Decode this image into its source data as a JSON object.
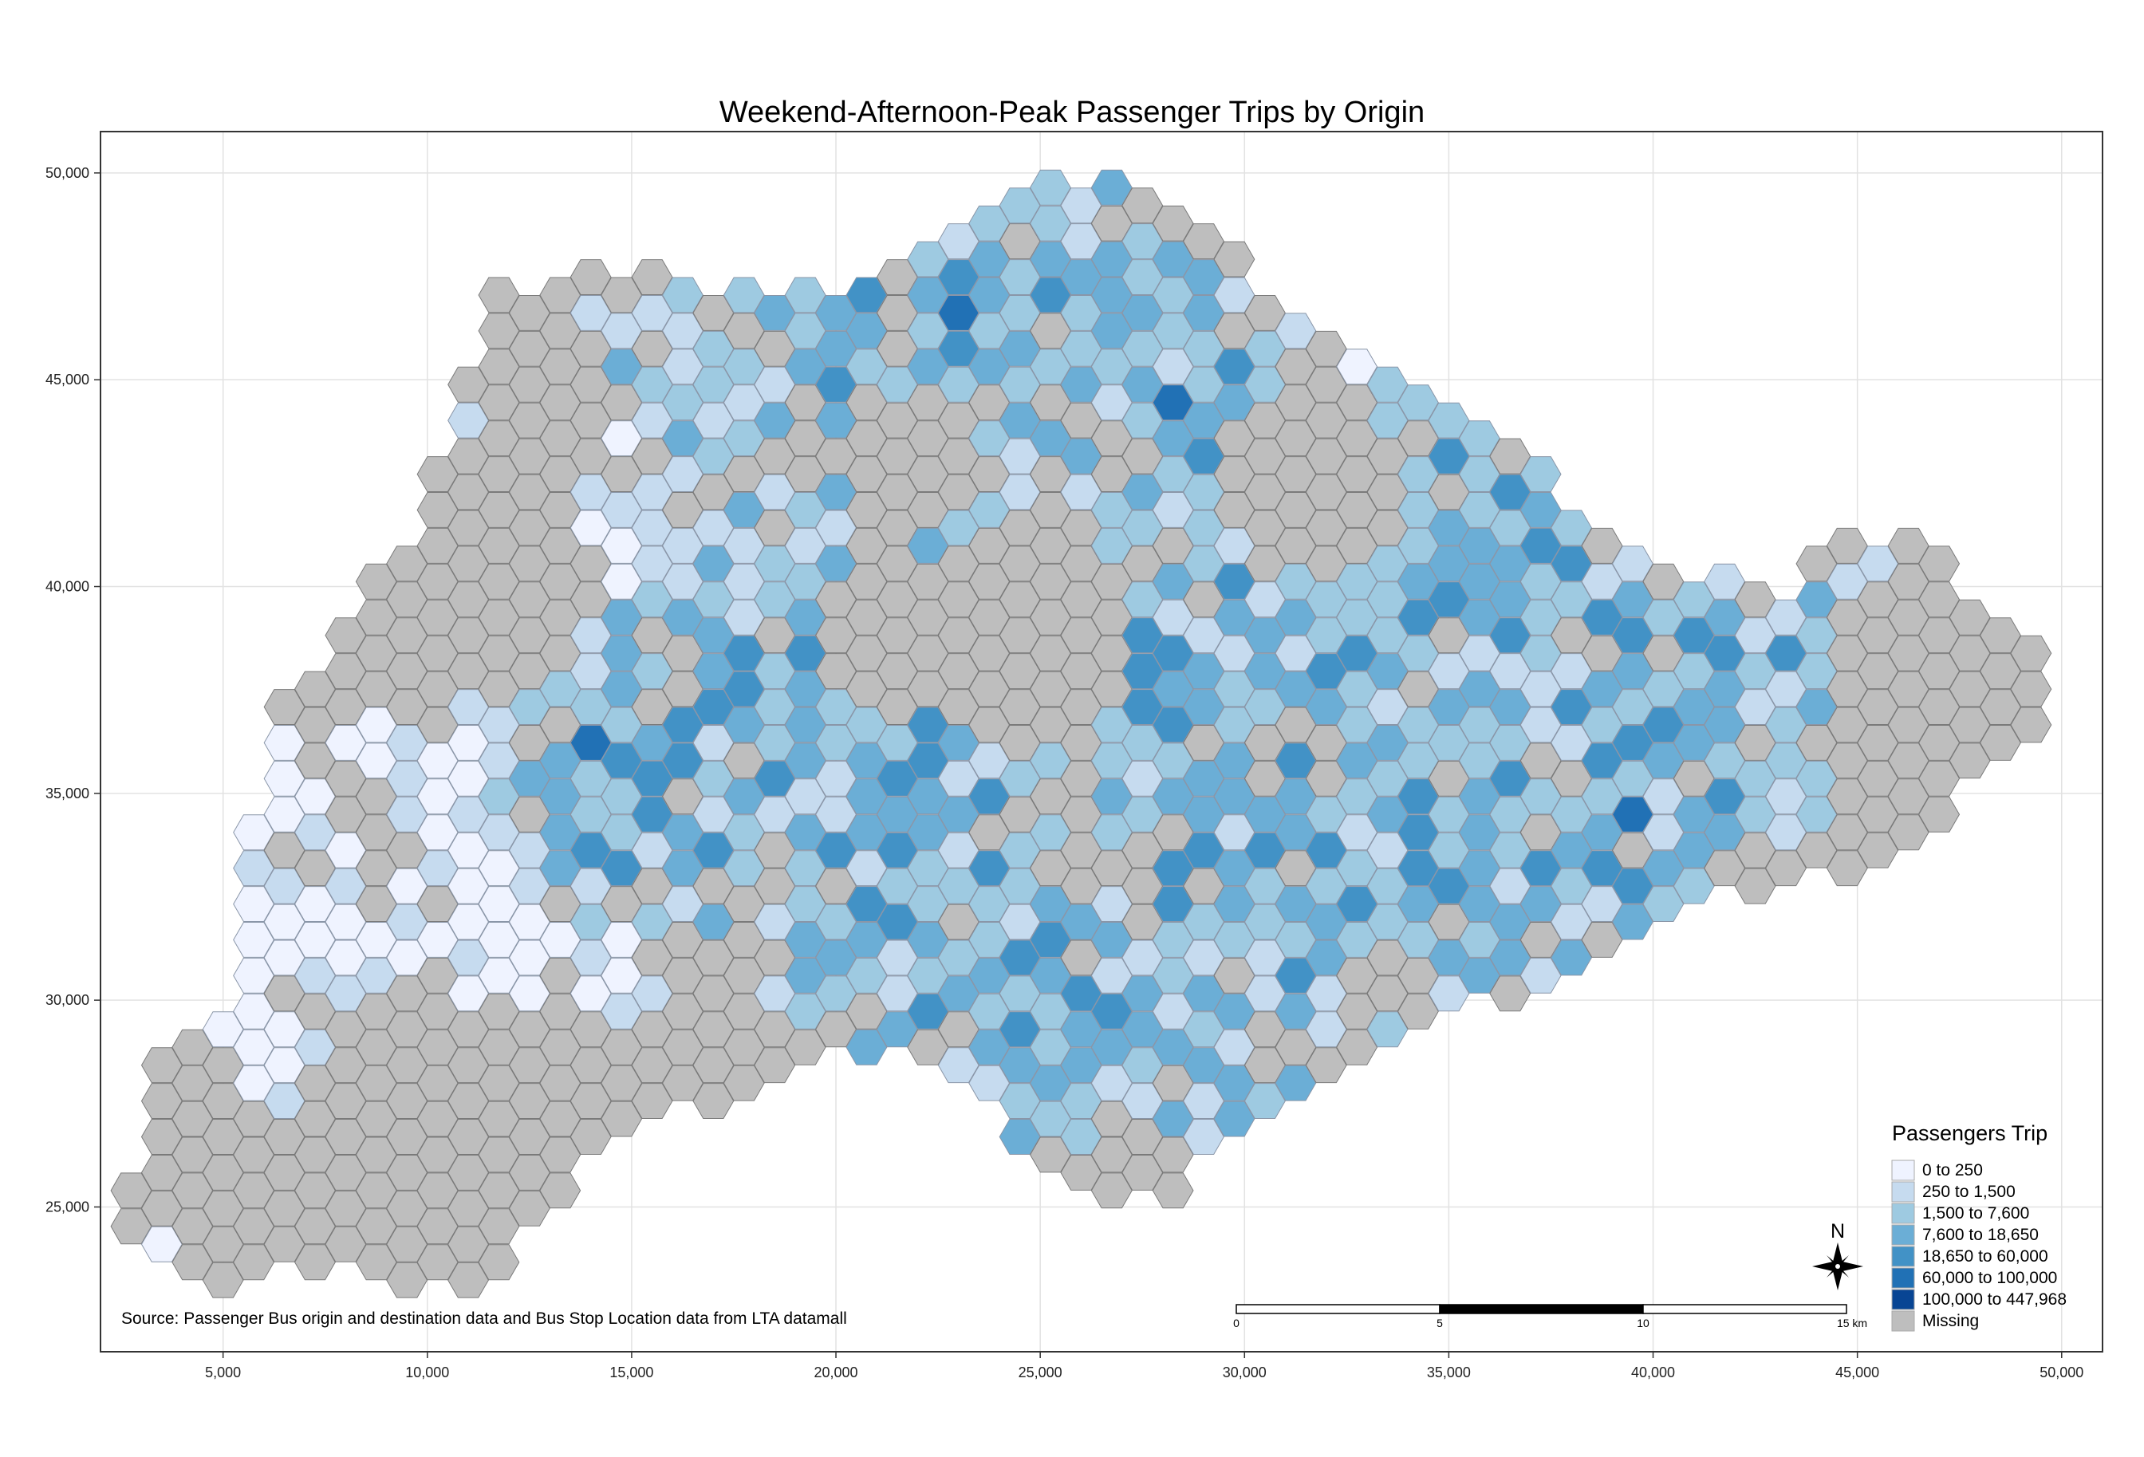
{
  "title": "Weekend-Afternoon-Peak Passenger Trips by Origin",
  "source": "Source: Passenger Bus origin and destination data and Bus Stop Location data from LTA datamall",
  "x_ticks": [
    "5,000",
    "10,000",
    "15,000",
    "20,000",
    "25,000",
    "30,000",
    "35,000",
    "40,000",
    "45,000",
    "50,000"
  ],
  "y_ticks": [
    "25,000",
    "30,000",
    "35,000",
    "40,000",
    "45,000",
    "50,000"
  ],
  "legend": {
    "title": "Passengers Trip",
    "items": [
      {
        "label": "0 to 250",
        "color": "#eff3ff"
      },
      {
        "label": "250 to 1,500",
        "color": "#c6dbef"
      },
      {
        "label": "1,500 to 7,600",
        "color": "#9ecae1"
      },
      {
        "label": "7,600 to 18,650",
        "color": "#6baed6"
      },
      {
        "label": "18,650 to 60,000",
        "color": "#4292c6"
      },
      {
        "label": "60,000 to 100,000",
        "color": "#2171b5"
      },
      {
        "label": "100,000 to 447,968",
        "color": "#084594"
      },
      {
        "label": "Missing",
        "color": "#bebebe"
      }
    ]
  },
  "scale_bar": {
    "labels": [
      "0",
      "5",
      "10",
      "15 km"
    ]
  },
  "north_arrow": {
    "label": "N",
    "icon": "compass-rose-icon"
  },
  "chart_data": {
    "type": "heatmap",
    "title": "Weekend-Afternoon-Peak Passenger Trips by Origin",
    "xlim": [
      2000,
      51000
    ],
    "ylim": [
      21500,
      51000
    ],
    "grid": true,
    "legend_position": "bottom-right",
    "classes": [
      "0 to 250",
      "250 to 1,500",
      "1,500 to 7,600",
      "7,600 to 18,650",
      "18,650 to 60,000",
      "60,000 to 100,000",
      "100,000 to 447,968",
      "Missing"
    ],
    "hotspots": [
      {
        "x": 13800,
        "y": 35800,
        "class": "60,000 to 100,000"
      },
      {
        "x": 22800,
        "y": 46500,
        "class": "60,000 to 100,000"
      },
      {
        "x": 39200,
        "y": 34200,
        "class": "60,000 to 100,000"
      },
      {
        "x": 28000,
        "y": 44500,
        "class": "60,000 to 100,000"
      },
      {
        "x": 20300,
        "y": 45200,
        "class": "18,650 to 60,000"
      },
      {
        "x": 16000,
        "y": 37000,
        "class": "18,650 to 60,000"
      },
      {
        "x": 20200,
        "y": 33500,
        "class": "18,650 to 60,000"
      },
      {
        "x": 28200,
        "y": 32000,
        "class": "18,650 to 60,000"
      },
      {
        "x": 27000,
        "y": 30000,
        "class": "18,650 to 60,000"
      },
      {
        "x": 34500,
        "y": 39000,
        "class": "18,650 to 60,000"
      },
      {
        "x": 38000,
        "y": 37000,
        "class": "18,650 to 60,000"
      },
      {
        "x": 41000,
        "y": 38500,
        "class": "18,650 to 60,000"
      },
      {
        "x": 36200,
        "y": 42500,
        "class": "18,650 to 60,000"
      },
      {
        "x": 35000,
        "y": 33000,
        "class": "18,650 to 60,000"
      },
      {
        "x": 25000,
        "y": 47000,
        "class": "18,650 to 60,000"
      }
    ]
  }
}
